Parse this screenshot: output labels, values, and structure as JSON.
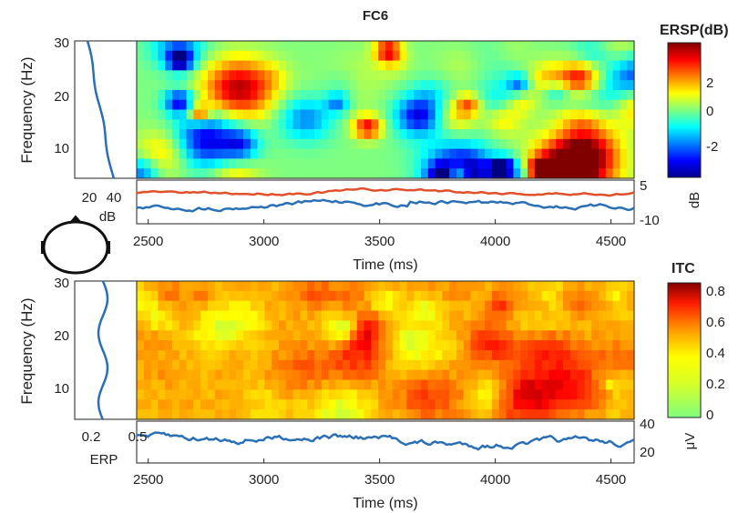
{
  "title": "FC6",
  "colors": {
    "ersp_line": "#2b6fb5",
    "baseline_line": "#e0502a",
    "itc_line": "#2b6fb5",
    "axis": "#222222"
  },
  "chart_data": [
    {
      "id": "ersp",
      "type": "heatmap",
      "metric": "ERSP",
      "ylabel": "Frequency (Hz)",
      "xlabel": "Time (ms)",
      "xlim": [
        2450,
        4600
      ],
      "ylim": [
        4,
        30
      ],
      "xticks": [
        "2500",
        "3000",
        "3500",
        "4000",
        "4500"
      ],
      "yticks": [
        "10",
        "20",
        "30"
      ],
      "colorbar": {
        "title": "ERSP(dB)",
        "unit": "dB",
        "range": [
          -3.5,
          3.5
        ],
        "ticks": [
          "2",
          "0",
          "-2"
        ],
        "colormap": "jet"
      },
      "side_panel": {
        "xticks": [
          "20",
          "40"
        ],
        "xlabel": "dB"
      },
      "bottom_panel": {
        "yticks": [
          "5",
          "-10"
        ]
      }
    },
    {
      "id": "itc",
      "type": "heatmap",
      "metric": "ITC",
      "ylabel": "Frequency (Hz)",
      "xlabel": "Time (ms)",
      "xlim": [
        2450,
        4600
      ],
      "ylim": [
        4,
        30
      ],
      "xticks": [
        "2500",
        "3000",
        "3500",
        "4000",
        "4500"
      ],
      "yticks": [
        "10",
        "20",
        "30"
      ],
      "colorbar": {
        "title": "ITC",
        "unit": "μV",
        "range": [
          0,
          0.85
        ],
        "ticks": [
          "0.8",
          "0.6",
          "0.4",
          "0.2",
          "0"
        ],
        "colormap": "jet"
      },
      "side_panel": {
        "xticks": [
          "0.2",
          "0.5"
        ],
        "xlabel": "ERP"
      },
      "bottom_panel": {
        "yticks": [
          "40",
          "20"
        ]
      }
    }
  ]
}
